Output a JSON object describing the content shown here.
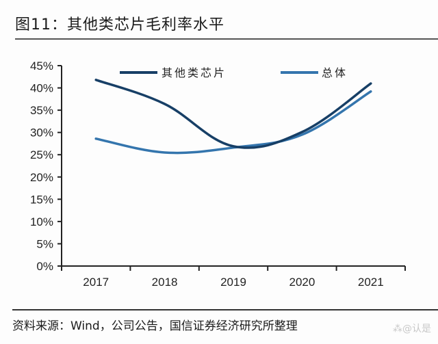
{
  "header": {
    "title": "图11：其他类芯片毛利率水平"
  },
  "footer": {
    "source": "资料来源：Wind，公司公告，国信证券经济研究所整理",
    "watermark": "⁂@认是"
  },
  "chart_data": {
    "type": "line",
    "title": "图11：其他类芯片毛利率水平",
    "xlabel": "",
    "ylabel": "",
    "categories": [
      "2017",
      "2018",
      "2019",
      "2020",
      "2021"
    ],
    "y_ticks": [
      "0%",
      "5%",
      "10%",
      "15%",
      "20%",
      "25%",
      "30%",
      "35%",
      "40%",
      "45%"
    ],
    "ylim": [
      0,
      45
    ],
    "grid": false,
    "legend_position": "top",
    "series": [
      {
        "name": "其他类芯片",
        "color": "#173f66",
        "values": [
          41.8,
          36.4,
          26.9,
          30.1,
          41.0
        ]
      },
      {
        "name": "总体",
        "color": "#3475ad",
        "values": [
          28.6,
          25.5,
          26.6,
          29.5,
          39.2
        ]
      }
    ]
  }
}
